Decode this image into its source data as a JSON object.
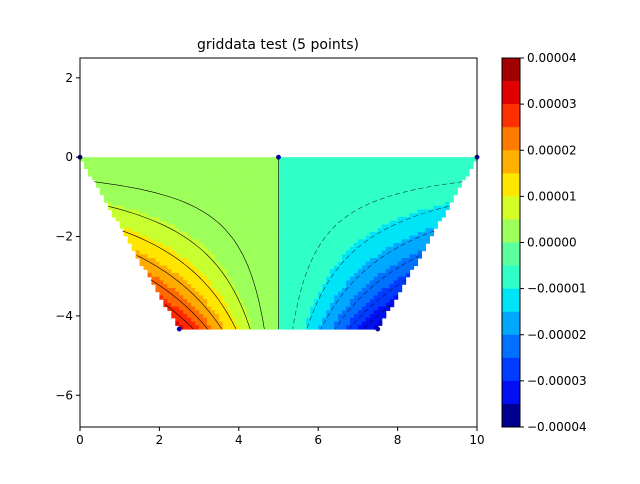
{
  "chart_data": {
    "type": "contourf",
    "title": "griddata test (5 points)",
    "xlabel": "",
    "ylabel": "",
    "xlim": [
      0,
      10
    ],
    "ylim": [
      -6.8,
      2.5
    ],
    "x_ticks": [
      0,
      2,
      4,
      6,
      8,
      10
    ],
    "y_ticks": [
      2,
      0,
      -2,
      -4,
      -6
    ],
    "x_tick_labels": [
      "0",
      "2",
      "4",
      "6",
      "8",
      "10"
    ],
    "y_tick_labels": [
      "2",
      "0",
      "−2",
      "−4",
      "−6"
    ],
    "grid": false,
    "points": [
      {
        "x": 0,
        "y": 0
      },
      {
        "x": 5,
        "y": 0
      },
      {
        "x": 10,
        "y": 0
      },
      {
        "x": 2.5,
        "y": -4.33
      },
      {
        "x": 7.5,
        "y": -4.33
      }
    ],
    "field_region": {
      "top_y": 0,
      "bottom_y": -4.33,
      "top_left_x": 0,
      "top_right_x": 10,
      "bottom_left_x": 2.5,
      "bottom_right_x": 7.5
    },
    "bands": [
      {
        "low": 3.51e-05,
        "high": 3.77e-05,
        "color": "#e00000"
      },
      {
        "low": 3.01e-05,
        "high": 3.51e-05,
        "color": "#ff2a00"
      },
      {
        "low": 2.5e-05,
        "high": 3.01e-05,
        "color": "#ff6a00"
      },
      {
        "low": 2e-05,
        "high": 2.5e-05,
        "color": "#ffab00"
      },
      {
        "low": 1.5e-05,
        "high": 2e-05,
        "color": "#ffe600"
      },
      {
        "low": 1e-05,
        "high": 1.5e-05,
        "color": "#c8ff30"
      },
      {
        "low": 0,
        "high": 1e-05,
        "color": "#9dff5b"
      },
      {
        "low": -1e-05,
        "high": 0,
        "color": "#30ffc8"
      },
      {
        "low": -1.5e-05,
        "high": -1e-05,
        "color": "#00e4f8"
      },
      {
        "low": -2e-05,
        "high": -1.5e-05,
        "color": "#00a8ff"
      },
      {
        "low": -2.5e-05,
        "high": -2e-05,
        "color": "#0070ff"
      },
      {
        "low": -3.01e-05,
        "high": -2.5e-05,
        "color": "#003cff"
      },
      {
        "low": -3.51e-05,
        "high": -3.01e-05,
        "color": "#0010f0"
      },
      {
        "low": -3.77e-05,
        "high": -3.51e-05,
        "color": "#0000d0"
      }
    ],
    "colorbar": {
      "vmin": -4e-05,
      "vmax": 4e-05,
      "tick_labels": [
        "0.00004",
        "0.00003",
        "0.00002",
        "0.00001",
        "0.00000",
        "−0.00001",
        "−0.00002",
        "−0.00003",
        "−0.00004"
      ],
      "tick_values": [
        4e-05,
        3e-05,
        2e-05,
        1e-05,
        0,
        -1e-05,
        -2e-05,
        -3e-05,
        -4e-05
      ],
      "levels": [
        {
          "low": 3.5e-05,
          "high": 4e-05,
          "color": "#a00000"
        },
        {
          "low": 3e-05,
          "high": 3.5e-05,
          "color": "#e00000"
        },
        {
          "low": 2.5e-05,
          "high": 3e-05,
          "color": "#ff3000"
        },
        {
          "low": 2e-05,
          "high": 2.5e-05,
          "color": "#ff7a00"
        },
        {
          "low": 1.5e-05,
          "high": 2e-05,
          "color": "#ffb000"
        },
        {
          "low": 1e-05,
          "high": 1.5e-05,
          "color": "#ffe600"
        },
        {
          "low": 5e-06,
          "high": 1e-05,
          "color": "#d4ff26"
        },
        {
          "low": 0,
          "high": 5e-06,
          "color": "#9dff5b"
        },
        {
          "low": -5e-06,
          "high": 0,
          "color": "#5bff9d"
        },
        {
          "low": -1e-05,
          "high": -5e-06,
          "color": "#30ffc8"
        },
        {
          "low": -1.5e-05,
          "high": -1e-05,
          "color": "#00e4f8"
        },
        {
          "low": -2e-05,
          "high": -1.5e-05,
          "color": "#00a8ff"
        },
        {
          "low": -2.5e-05,
          "high": -2e-05,
          "color": "#0070ff"
        },
        {
          "low": -3e-05,
          "high": -2.5e-05,
          "color": "#003cff"
        },
        {
          "low": -3.5e-05,
          "high": -3e-05,
          "color": "#0010f0"
        },
        {
          "low": -4e-05,
          "high": -3.5e-05,
          "color": "#000090"
        }
      ]
    }
  }
}
